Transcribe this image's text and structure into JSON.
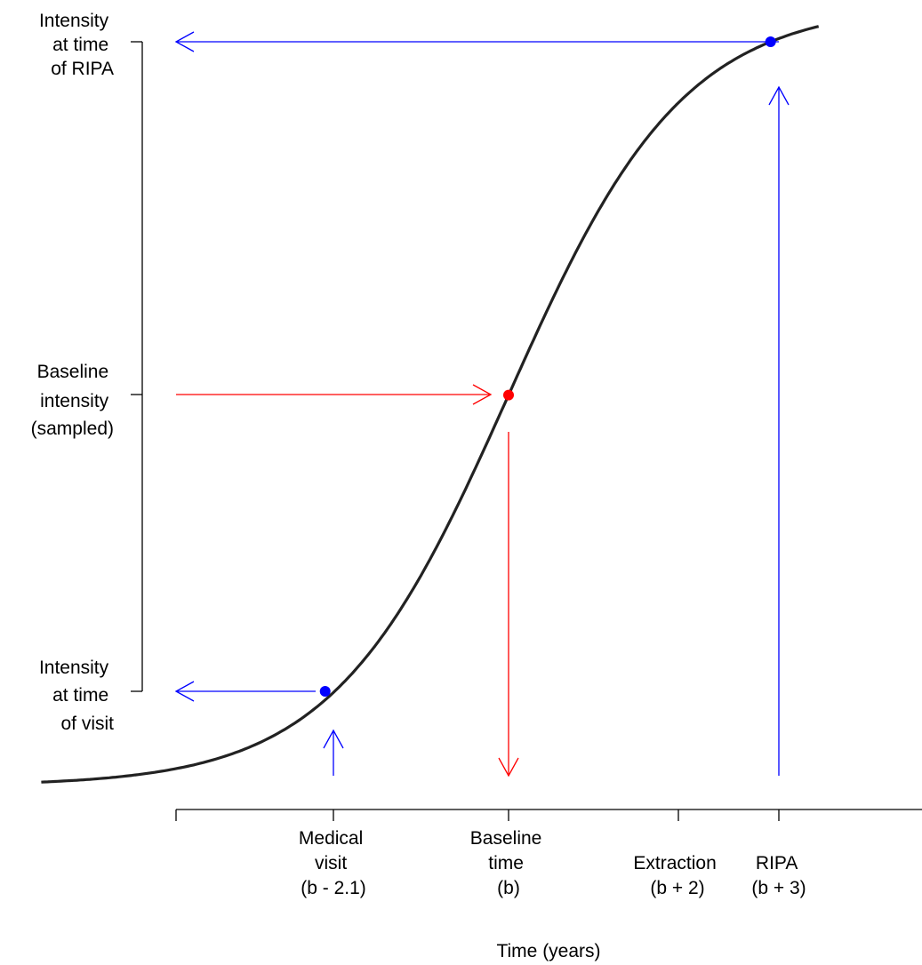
{
  "chart_data": {
    "type": "line",
    "xlabel": "Time (years)",
    "ylabel": "",
    "x_ticks": [
      {
        "x": -5.35,
        "lines": []
      },
      {
        "x": -2.1,
        "lines": [
          "Medical",
          "visit",
          "(b - 2.1)"
        ]
      },
      {
        "x": 0,
        "lines": [
          "Baseline",
          "time",
          "(b)"
        ]
      },
      {
        "x": 2,
        "lines": [
          "Extraction",
          "(b + 2)"
        ]
      },
      {
        "x": 3,
        "lines": [
          "RIPA",
          "(b + 3)"
        ]
      }
    ],
    "y_ticks": [
      {
        "y": 0.952,
        "lines": [
          "Intensity",
          "at time",
          "of RIPA"
        ]
      },
      {
        "y": 0.5,
        "lines": [
          "Baseline",
          "intensity",
          "(sampled)"
        ]
      },
      {
        "y": 0.121,
        "lines": [
          "Intensity",
          "at time",
          "of visit"
        ]
      }
    ],
    "xlim": [
      -5.35,
      3.55
    ],
    "ylim": [
      0,
      1
    ],
    "series": [
      {
        "x_range": [
          -5.35,
          3.55
        ],
        "curve": "logistic",
        "midpoint": 0,
        "color": "#222222"
      }
    ],
    "points": [
      {
        "x": -2.1,
        "y": 0.121,
        "color": "#0000ff"
      },
      {
        "x": 0,
        "y": 0.5,
        "color": "#ff0000"
      },
      {
        "x": 3,
        "y": 0.952,
        "color": "#0000ff"
      }
    ],
    "colors": {
      "blue": "#0000ff",
      "red": "#ff0000",
      "curve": "#222222"
    }
  }
}
